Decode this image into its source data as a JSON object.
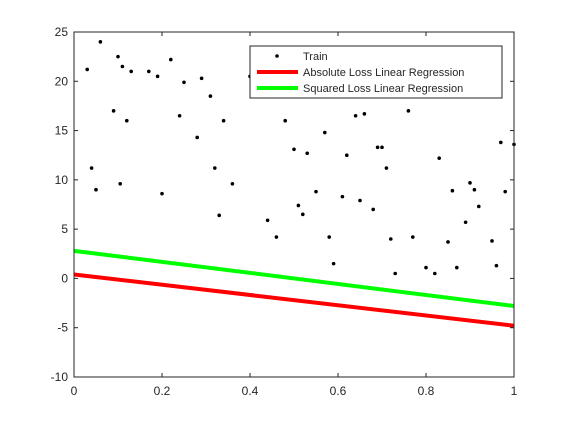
{
  "chart_data": {
    "type": "scatter",
    "title": "",
    "xlabel": "",
    "ylabel": "",
    "xlim": [
      0,
      1
    ],
    "ylim": [
      -10,
      25
    ],
    "xticks": [
      0,
      0.2,
      0.4,
      0.6,
      0.8,
      1
    ],
    "xtick_labels": [
      "0",
      "0.2",
      "0.4",
      "0.6",
      "0.8",
      "1"
    ],
    "yticks": [
      -10,
      -5,
      0,
      5,
      10,
      15,
      20,
      25
    ],
    "ytick_labels": [
      "-10",
      "-5",
      "0",
      "5",
      "10",
      "15",
      "20",
      "25"
    ],
    "grid": false,
    "legend_position": "top-right",
    "series": [
      {
        "name": "Train",
        "kind": "points",
        "color": "#000000",
        "x": [
          0.06,
          0.1,
          0.11,
          0.03,
          0.09,
          0.12,
          0.13,
          0.04,
          0.05,
          0.105,
          0.17,
          0.19,
          0.2,
          0.22,
          0.24,
          0.25,
          0.28,
          0.29,
          0.31,
          0.32,
          0.33,
          0.34,
          0.36,
          0.4,
          0.41,
          0.44,
          0.46,
          0.48,
          0.5,
          0.51,
          0.52,
          0.53,
          0.55,
          0.57,
          0.58,
          0.59,
          0.61,
          0.62,
          0.64,
          0.65,
          0.66,
          0.68,
          0.69,
          0.7,
          0.71,
          0.72,
          0.73,
          0.74,
          0.76,
          0.77,
          0.8,
          0.82,
          0.83,
          0.85,
          0.86,
          0.87,
          0.89,
          0.9,
          0.91,
          0.92,
          0.95,
          0.96,
          0.97,
          0.98,
          1.0
        ],
        "y": [
          24.0,
          22.5,
          21.5,
          21.2,
          17.0,
          16.0,
          21.0,
          11.2,
          9.0,
          9.6,
          21.0,
          20.5,
          8.6,
          22.2,
          16.5,
          19.9,
          14.3,
          20.3,
          18.5,
          11.2,
          6.4,
          16.0,
          9.6,
          20.5,
          21.2,
          5.9,
          4.2,
          16.0,
          13.1,
          7.4,
          6.5,
          12.7,
          8.8,
          14.8,
          4.2,
          1.5,
          8.3,
          12.5,
          16.5,
          7.9,
          16.7,
          7.0,
          13.3,
          13.3,
          11.2,
          4.0,
          0.5,
          22.2,
          17.0,
          4.2,
          1.1,
          0.5,
          12.2,
          3.7,
          8.9,
          1.1,
          5.7,
          9.7,
          9.0,
          7.3,
          3.8,
          1.3,
          13.8,
          8.8,
          13.6
        ]
      },
      {
        "name": "Absolute Loss Linear Regression",
        "kind": "line",
        "color": "#ff0000",
        "x": [
          0,
          1
        ],
        "y": [
          0.4,
          -4.8
        ]
      },
      {
        "name": "Squared Loss Linear Regression",
        "kind": "line",
        "color": "#00ff00",
        "x": [
          0,
          1
        ],
        "y": [
          2.8,
          -2.8
        ]
      }
    ]
  }
}
